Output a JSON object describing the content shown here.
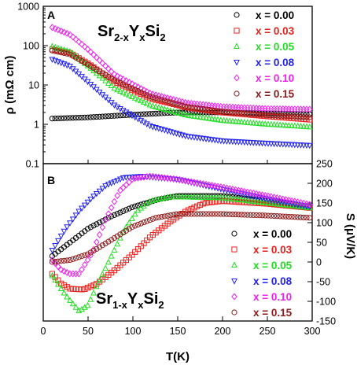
{
  "chart_data": [
    {
      "panel": "A",
      "type": "scatter",
      "formula": {
        "base": "Sr",
        "sub1": "2-x",
        "mid": "Y",
        "sub2": "x",
        "tail": "Si",
        "sub3": "2"
      },
      "ylabel": "ρ (mΩ cm)",
      "yscale": "log",
      "ylim": [
        0.1,
        1000
      ],
      "xlim": [
        0,
        300
      ],
      "yticks": [
        "0.1",
        "1",
        "10",
        "100",
        "1000"
      ],
      "legend_position": "top-right",
      "series": [
        {
          "name": "x = 0.00",
          "color": "#000000",
          "marker": "circle",
          "points": [
            [
              10,
              1.4
            ],
            [
              50,
              1.5
            ],
            [
              100,
              1.75
            ],
            [
              150,
              2.0
            ],
            [
              200,
              2.0
            ],
            [
              250,
              1.9
            ],
            [
              300,
              1.8
            ]
          ]
        },
        {
          "name": "x = 0.03",
          "color": "#e8201c",
          "marker": "square",
          "points": [
            [
              10,
              80
            ],
            [
              30,
              65
            ],
            [
              50,
              35
            ],
            [
              80,
              12
            ],
            [
              120,
              4.5
            ],
            [
              160,
              2.7
            ],
            [
              200,
              2.0
            ],
            [
              250,
              1.6
            ],
            [
              300,
              1.3
            ]
          ]
        },
        {
          "name": "x = 0.05",
          "color": "#22dd22",
          "marker": "triangle-up",
          "points": [
            [
              10,
              95
            ],
            [
              30,
              70
            ],
            [
              50,
              30
            ],
            [
              80,
              8
            ],
            [
              120,
              3
            ],
            [
              160,
              1.7
            ],
            [
              200,
              1.25
            ],
            [
              250,
              1.0
            ],
            [
              300,
              0.85
            ]
          ]
        },
        {
          "name": "x = 0.08",
          "color": "#2222ee",
          "marker": "triangle-down",
          "points": [
            [
              10,
              45
            ],
            [
              30,
              30
            ],
            [
              50,
              12
            ],
            [
              80,
              3
            ],
            [
              120,
              0.9
            ],
            [
              160,
              0.5
            ],
            [
              200,
              0.38
            ],
            [
              250,
              0.33
            ],
            [
              300,
              0.29
            ]
          ]
        },
        {
          "name": "x = 0.10",
          "color": "#ee22ee",
          "marker": "diamond",
          "points": [
            [
              10,
              290
            ],
            [
              30,
              190
            ],
            [
              50,
              80
            ],
            [
              80,
              18
            ],
            [
              120,
              6
            ],
            [
              160,
              3.5
            ],
            [
              200,
              2.8
            ],
            [
              250,
              2.5
            ],
            [
              300,
              2.4
            ]
          ]
        },
        {
          "name": "x = 0.15",
          "color": "#8b1a1a",
          "marker": "circle",
          "points": [
            [
              10,
              75
            ],
            [
              30,
              60
            ],
            [
              50,
              33
            ],
            [
              80,
              13
            ],
            [
              120,
              5
            ],
            [
              160,
              2.8
            ],
            [
              200,
              2.1
            ],
            [
              250,
              1.7
            ],
            [
              300,
              1.5
            ]
          ]
        }
      ]
    },
    {
      "panel": "B",
      "type": "scatter",
      "formula": {
        "base": "Sr",
        "sub1": "1-x",
        "mid": "Y",
        "sub2": "x",
        "tail": "Si",
        "sub3": "2"
      },
      "xlabel": "T(K)",
      "ylabel": "S (μV/K)",
      "ylim": [
        -150,
        250
      ],
      "xlim": [
        0,
        300
      ],
      "xticks": [
        "0",
        "50",
        "100",
        "150",
        "200",
        "250",
        "300"
      ],
      "yticks": [
        "-150",
        "-100",
        "-50",
        "0",
        "50",
        "100",
        "150",
        "200",
        "250"
      ],
      "legend_position": "bottom-right",
      "series": [
        {
          "name": "x = 0.00",
          "color": "#000000",
          "marker": "circle",
          "points": [
            [
              10,
              15
            ],
            [
              30,
              50
            ],
            [
              50,
              85
            ],
            [
              75,
              115
            ],
            [
              100,
              140
            ],
            [
              130,
              160
            ],
            [
              150,
              168
            ],
            [
              200,
              168
            ],
            [
              250,
              155
            ],
            [
              300,
              140
            ]
          ]
        },
        {
          "name": "x = 0.03",
          "color": "#e8201c",
          "marker": "square",
          "points": [
            [
              10,
              -30
            ],
            [
              20,
              -55
            ],
            [
              30,
              -68
            ],
            [
              45,
              -70
            ],
            [
              60,
              -55
            ],
            [
              80,
              -20
            ],
            [
              100,
              20
            ],
            [
              120,
              65
            ],
            [
              140,
              100
            ],
            [
              160,
              130
            ],
            [
              180,
              150
            ],
            [
              200,
              155
            ],
            [
              250,
              148
            ],
            [
              300,
              137
            ]
          ]
        },
        {
          "name": "x = 0.05",
          "color": "#22dd22",
          "marker": "triangle-up",
          "points": [
            [
              10,
              -35
            ],
            [
              25,
              -85
            ],
            [
              40,
              -125
            ],
            [
              50,
              -110
            ],
            [
              60,
              -60
            ],
            [
              75,
              10
            ],
            [
              90,
              80
            ],
            [
              105,
              130
            ],
            [
              120,
              155
            ],
            [
              140,
              165
            ],
            [
              160,
              165
            ],
            [
              200,
              163
            ],
            [
              250,
              150
            ],
            [
              300,
              137
            ]
          ]
        },
        {
          "name": "x = 0.08",
          "color": "#2222ee",
          "marker": "triangle-down",
          "points": [
            [
              10,
              30
            ],
            [
              25,
              85
            ],
            [
              40,
              130
            ],
            [
              55,
              165
            ],
            [
              70,
              195
            ],
            [
              90,
              215
            ],
            [
              110,
              218
            ],
            [
              150,
              210
            ],
            [
              200,
              185
            ],
            [
              250,
              160
            ],
            [
              300,
              140
            ]
          ]
        },
        {
          "name": "x = 0.10",
          "color": "#ee22ee",
          "marker": "diamond",
          "points": [
            [
              10,
              5
            ],
            [
              20,
              -20
            ],
            [
              30,
              -30
            ],
            [
              40,
              -30
            ],
            [
              55,
              25
            ],
            [
              70,
              110
            ],
            [
              85,
              180
            ],
            [
              100,
              212
            ],
            [
              120,
              218
            ],
            [
              150,
              210
            ],
            [
              200,
              190
            ],
            [
              250,
              168
            ],
            [
              300,
              145
            ]
          ]
        },
        {
          "name": "x = 0.15",
          "color": "#8b1a1a",
          "marker": "circle",
          "points": [
            [
              10,
              0
            ],
            [
              30,
              5
            ],
            [
              50,
              20
            ],
            [
              75,
              55
            ],
            [
              100,
              90
            ],
            [
              125,
              112
            ],
            [
              150,
              122
            ],
            [
              200,
              122
            ],
            [
              250,
              118
            ],
            [
              300,
              112
            ]
          ]
        }
      ]
    }
  ]
}
